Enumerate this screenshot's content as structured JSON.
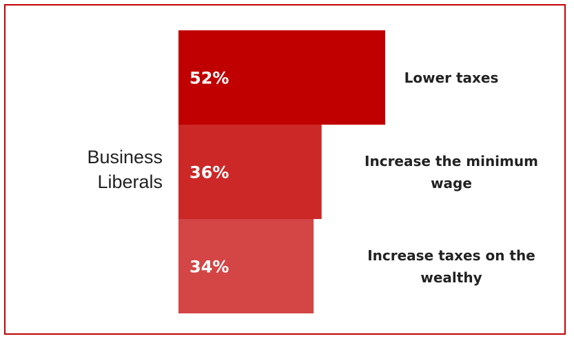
{
  "chart_data": {
    "type": "bar",
    "orientation": "horizontal",
    "group": [
      "Business",
      "Liberals"
    ],
    "categories": [
      "Lower taxes",
      "Increase the minimum wage",
      "Increase taxes on the wealthy"
    ],
    "category_lines": [
      [
        "Lower taxes"
      ],
      [
        "Increase the minimum",
        "wage"
      ],
      [
        "Increase taxes on the",
        "wealthy"
      ]
    ],
    "values": [
      52,
      36,
      34
    ],
    "value_labels": [
      "52%",
      "36%",
      "34%"
    ],
    "colors": [
      "#c00000",
      "#cc2828",
      "#d44545"
    ],
    "xlim": [
      0,
      100
    ],
    "grid": false,
    "legend": "none"
  },
  "frame": {
    "border_color": "#c00000"
  }
}
